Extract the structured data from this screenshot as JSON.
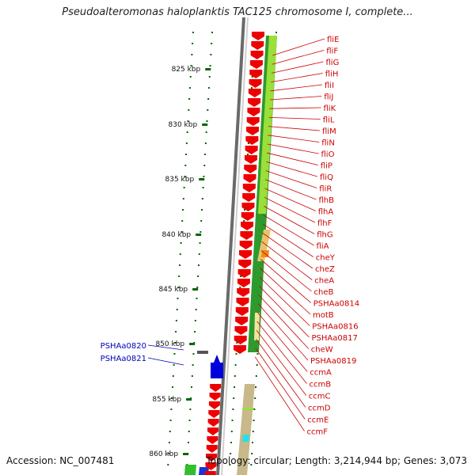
{
  "title": "Pseudoalteromonas haloplanktis TAC125 chromosome I, complete...",
  "footer": {
    "accession": "Accession: NC_007481",
    "summary": "Topology: circular; Length: 3,214,944 bp; Genes: 3,073"
  },
  "colors": {
    "forward_gene": "#ee0000",
    "reverse_gene": "#0000dd",
    "label_forward": "#cc0000",
    "label_reverse": "#0000bb",
    "ruler_tick": "#006600",
    "backbone": "#808080",
    "green_track": "#2e9a2e",
    "lime_track": "#9adf3a",
    "tan_track": "#c8b88a"
  },
  "ruler_ticks": [
    "825 kbp",
    "830 kbp",
    "835 kbp",
    "840 kbp",
    "845 kbp",
    "850 kbp",
    "855 kbp",
    "860 kbp"
  ],
  "forward_labels": [
    "fliE",
    "fliF",
    "fliG",
    "fliH",
    "fliI",
    "fliJ",
    "fliK",
    "fliL",
    "fliM",
    "fliN",
    "fliO",
    "fliP",
    "fliQ",
    "fliR",
    "flhB",
    "flhA",
    "flhF",
    "flhG",
    "fliA",
    "cheY",
    "cheZ",
    "cheA",
    "cheB",
    "PSHAa0814",
    "motB",
    "PSHAa0816",
    "PSHAa0817",
    "cheW",
    "PSHAa0819",
    "ccmA",
    "ccmB",
    "ccmC",
    "ccmD",
    "ccmE",
    "ccmF"
  ],
  "reverse_labels": [
    "PSHAa0820",
    "PSHAa0821"
  ]
}
